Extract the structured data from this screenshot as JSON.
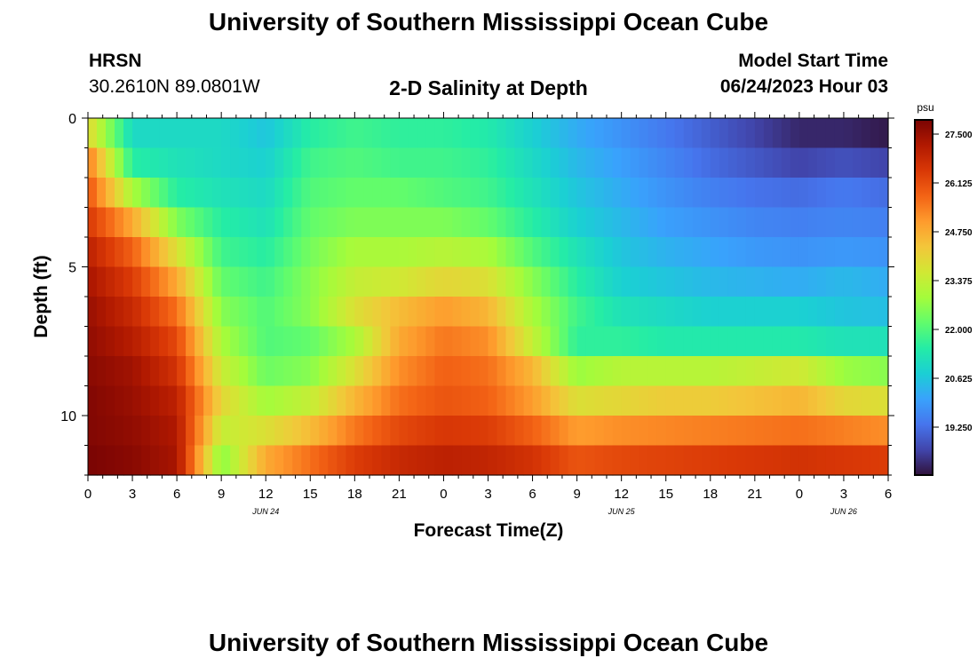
{
  "header": {
    "title": "University of Southern Mississippi Ocean Cube",
    "station_name": "HRSN",
    "station_coords": "30.2610N  89.0801W",
    "chart_title": "2-D Salinity at Depth",
    "model_start_label": "Model Start Time",
    "model_start_value": "06/24/2023 Hour 03",
    "footer_title": "University of Southern Mississippi Ocean Cube"
  },
  "chart_data": {
    "type": "heatmap",
    "title": "2-D Salinity at Depth",
    "xlabel": "Forecast Time(Z)",
    "ylabel": "Depth (ft)",
    "x_ticks": [
      "0",
      "3",
      "6",
      "9",
      "12",
      "15",
      "18",
      "21",
      "0",
      "3",
      "6",
      "9",
      "12",
      "15",
      "18",
      "21",
      "0",
      "3",
      "6"
    ],
    "x_range_hours": [
      0,
      54
    ],
    "date_labels": [
      {
        "label": "JUN 24",
        "hour": 12
      },
      {
        "label": "JUN 25",
        "hour": 36
      },
      {
        "label": "JUN 26",
        "hour": 51
      }
    ],
    "y_ticks": [
      {
        "label": "0",
        "value": 0
      },
      {
        "label": "5",
        "value": 5
      },
      {
        "label": "10",
        "value": 10
      }
    ],
    "y_range_ft": [
      0,
      12
    ],
    "colorbar": {
      "unit": "psu",
      "tick_labels": [
        "27.500",
        "26.125",
        "24.750",
        "23.375",
        "22.000",
        "20.625",
        "19.250"
      ],
      "tick_values": [
        27.5,
        26.125,
        24.75,
        23.375,
        22.0,
        20.625,
        19.25
      ],
      "range": [
        17.9,
        27.9
      ],
      "stops": [
        "#30123b",
        "#4145ab",
        "#4675ed",
        "#39a2fc",
        "#1bcfd4",
        "#24eca6",
        "#61fc6c",
        "#a4fc3b",
        "#d1e834",
        "#f3c63a",
        "#fe9b2d",
        "#f36315",
        "#d93806",
        "#b11901",
        "#7a0403"
      ]
    },
    "x_hours": [
      0,
      3,
      6,
      9,
      12,
      15,
      18,
      21,
      24,
      27,
      30,
      33,
      36,
      39,
      42,
      45,
      48,
      51,
      54
    ],
    "depth_levels_ft": [
      0.5,
      1.5,
      2.5,
      3.5,
      4.5,
      5.5,
      6.5,
      7.5,
      8.5,
      9.5,
      10.5,
      11.5
    ],
    "salinity_psu": [
      [
        24.0,
        21.0,
        21.0,
        21.0,
        20.6,
        21.5,
        21.8,
        21.6,
        21.6,
        21.4,
        20.8,
        20.2,
        19.8,
        19.4,
        19.0,
        18.6,
        18.2,
        18.2,
        18.0
      ],
      [
        25.5,
        21.5,
        21.2,
        21.0,
        20.8,
        21.8,
        22.0,
        21.8,
        21.8,
        21.6,
        21.0,
        20.4,
        20.0,
        19.6,
        19.2,
        18.9,
        18.6,
        18.8,
        18.6
      ],
      [
        26.0,
        23.0,
        21.5,
        21.2,
        21.0,
        22.0,
        22.2,
        22.2,
        22.0,
        21.8,
        21.2,
        20.6,
        20.2,
        19.8,
        19.5,
        19.3,
        19.2,
        19.4,
        19.2
      ],
      [
        26.5,
        24.8,
        22.5,
        21.5,
        21.2,
        22.2,
        22.5,
        22.5,
        22.5,
        22.2,
        21.5,
        20.8,
        20.4,
        20.0,
        19.8,
        19.6,
        19.5,
        19.6,
        19.5
      ],
      [
        27.0,
        25.8,
        23.8,
        21.8,
        21.5,
        22.4,
        23.0,
        23.0,
        23.2,
        23.0,
        22.0,
        21.2,
        20.6,
        20.3,
        20.1,
        19.9,
        19.8,
        19.9,
        19.8
      ],
      [
        27.3,
        26.4,
        24.8,
        22.2,
        21.8,
        22.6,
        23.4,
        23.6,
        24.0,
        23.8,
        22.6,
        21.5,
        20.8,
        20.6,
        20.4,
        20.3,
        20.2,
        20.4,
        20.2
      ],
      [
        27.5,
        26.8,
        25.6,
        22.6,
        22.0,
        22.6,
        23.8,
        24.5,
        25.0,
        24.6,
        23.0,
        21.8,
        21.2,
        21.0,
        20.8,
        20.8,
        20.8,
        20.6,
        20.5
      ],
      [
        27.6,
        27.1,
        26.2,
        23.0,
        22.0,
        22.2,
        23.0,
        24.8,
        25.5,
        25.2,
        23.4,
        21.6,
        21.6,
        21.4,
        21.4,
        21.4,
        21.4,
        21.2,
        21.2
      ],
      [
        27.7,
        27.4,
        26.6,
        23.5,
        22.3,
        22.6,
        23.8,
        25.2,
        25.8,
        25.6,
        24.6,
        22.8,
        23.2,
        23.2,
        23.2,
        23.4,
        23.6,
        22.8,
        22.6
      ],
      [
        27.8,
        27.5,
        27.0,
        24.0,
        22.9,
        23.4,
        24.6,
        25.6,
        26.0,
        25.8,
        25.0,
        23.8,
        24.0,
        24.2,
        24.2,
        24.4,
        24.6,
        24.0,
        23.8
      ],
      [
        27.8,
        27.6,
        27.2,
        23.4,
        23.8,
        24.5,
        25.5,
        26.2,
        26.5,
        26.4,
        25.8,
        25.0,
        25.2,
        25.3,
        25.4,
        25.5,
        25.6,
        25.4,
        25.2
      ],
      [
        27.9,
        27.7,
        27.3,
        22.6,
        24.8,
        25.6,
        26.4,
        26.8,
        27.0,
        26.9,
        26.6,
        26.0,
        26.2,
        26.3,
        26.4,
        26.5,
        26.6,
        26.5,
        26.4
      ]
    ]
  }
}
